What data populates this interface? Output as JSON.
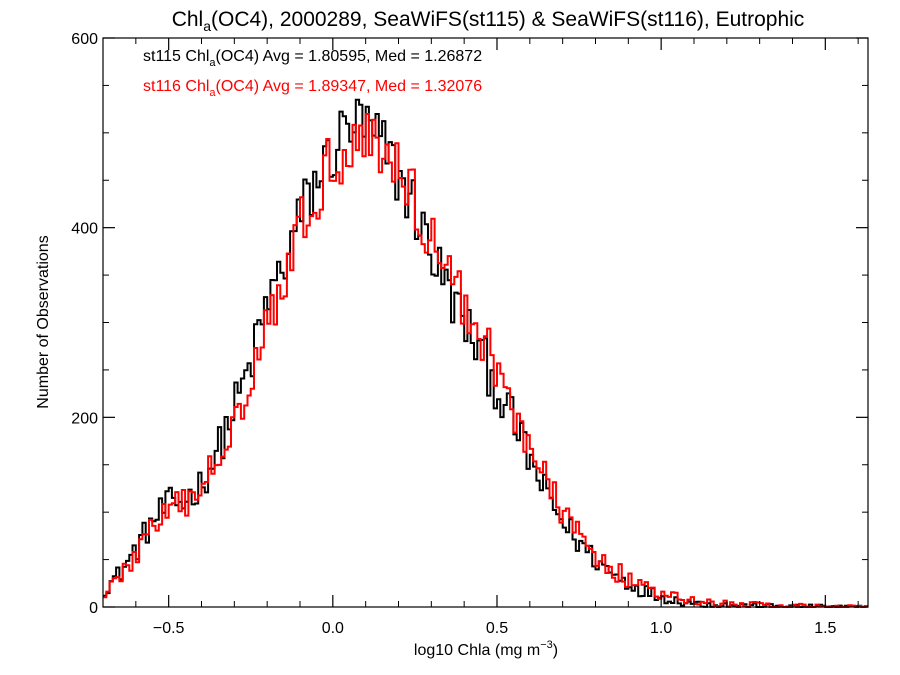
{
  "chart_data": {
    "type": "line",
    "title": {
      "prefix": "Chl",
      "subscript": "a",
      "rest": "(OC4), 2000289, SeaWiFS(st115) & SeaWiFS(st116), Eutrophic"
    },
    "xlabel": {
      "main": "log10 Chla (mg m",
      "superscript": "−3",
      "close": ")"
    },
    "ylabel": "Number of Observations",
    "xlim": [
      -0.7,
      1.63
    ],
    "ylim": [
      0,
      600
    ],
    "xticks": [
      -0.5,
      0.0,
      0.5,
      1.0,
      1.5
    ],
    "xtick_labels": [
      "−0.5",
      "0.0",
      "0.5",
      "1.0",
      "1.5"
    ],
    "yticks": [
      0,
      200,
      400,
      600
    ],
    "ytick_labels": [
      "0",
      "200",
      "400",
      "600"
    ],
    "step": "histogram",
    "bin_width": 0.01,
    "series": [
      {
        "id": "st115",
        "color": "#000000",
        "stats": {
          "prefix": "st115 Chl",
          "subscript": "a",
          "rest": "(OC4) Avg = 1.80595, Med = 1.26872"
        },
        "profile": [
          [
            -0.7,
            18
          ],
          [
            -0.65,
            35
          ],
          [
            -0.6,
            60
          ],
          [
            -0.55,
            90
          ],
          [
            -0.5,
            108
          ],
          [
            -0.45,
            112
          ],
          [
            -0.4,
            130
          ],
          [
            -0.35,
            165
          ],
          [
            -0.3,
            210
          ],
          [
            -0.25,
            255
          ],
          [
            -0.2,
            320
          ],
          [
            -0.15,
            360
          ],
          [
            -0.1,
            410
          ],
          [
            -0.05,
            450
          ],
          [
            0.0,
            480
          ],
          [
            0.05,
            510
          ],
          [
            0.1,
            505
          ],
          [
            0.15,
            485
          ],
          [
            0.2,
            455
          ],
          [
            0.25,
            420
          ],
          [
            0.3,
            375
          ],
          [
            0.35,
            335
          ],
          [
            0.4,
            300
          ],
          [
            0.45,
            268
          ],
          [
            0.5,
            230
          ],
          [
            0.55,
            195
          ],
          [
            0.6,
            155
          ],
          [
            0.65,
            118
          ],
          [
            0.7,
            90
          ],
          [
            0.75,
            68
          ],
          [
            0.8,
            50
          ],
          [
            0.85,
            36
          ],
          [
            0.9,
            25
          ],
          [
            0.95,
            17
          ],
          [
            1.0,
            11
          ],
          [
            1.05,
            7
          ],
          [
            1.1,
            4
          ],
          [
            1.2,
            2
          ],
          [
            1.3,
            1
          ],
          [
            1.63,
            0
          ]
        ]
      },
      {
        "id": "st116",
        "color": "#ff0000",
        "stats": {
          "prefix": "st116 Chl",
          "subscript": "a",
          "rest": "(OC4) Avg = 1.89347, Med = 1.32076"
        },
        "profile": [
          [
            -0.7,
            15
          ],
          [
            -0.65,
            30
          ],
          [
            -0.6,
            55
          ],
          [
            -0.55,
            85
          ],
          [
            -0.5,
            100
          ],
          [
            -0.45,
            108
          ],
          [
            -0.4,
            125
          ],
          [
            -0.35,
            158
          ],
          [
            -0.3,
            200
          ],
          [
            -0.25,
            245
          ],
          [
            -0.2,
            305
          ],
          [
            -0.15,
            350
          ],
          [
            -0.1,
            395
          ],
          [
            -0.05,
            440
          ],
          [
            0.0,
            470
          ],
          [
            0.05,
            495
          ],
          [
            0.1,
            500
          ],
          [
            0.15,
            482
          ],
          [
            0.2,
            460
          ],
          [
            0.25,
            430
          ],
          [
            0.3,
            390
          ],
          [
            0.35,
            355
          ],
          [
            0.4,
            318
          ],
          [
            0.45,
            290
          ],
          [
            0.5,
            250
          ],
          [
            0.55,
            210
          ],
          [
            0.6,
            170
          ],
          [
            0.65,
            130
          ],
          [
            0.7,
            100
          ],
          [
            0.75,
            75
          ],
          [
            0.8,
            56
          ],
          [
            0.85,
            41
          ],
          [
            0.9,
            29
          ],
          [
            0.95,
            20
          ],
          [
            1.0,
            13
          ],
          [
            1.05,
            9
          ],
          [
            1.1,
            6
          ],
          [
            1.2,
            3
          ],
          [
            1.3,
            2
          ],
          [
            1.45,
            1
          ],
          [
            1.63,
            0
          ]
        ]
      }
    ]
  }
}
